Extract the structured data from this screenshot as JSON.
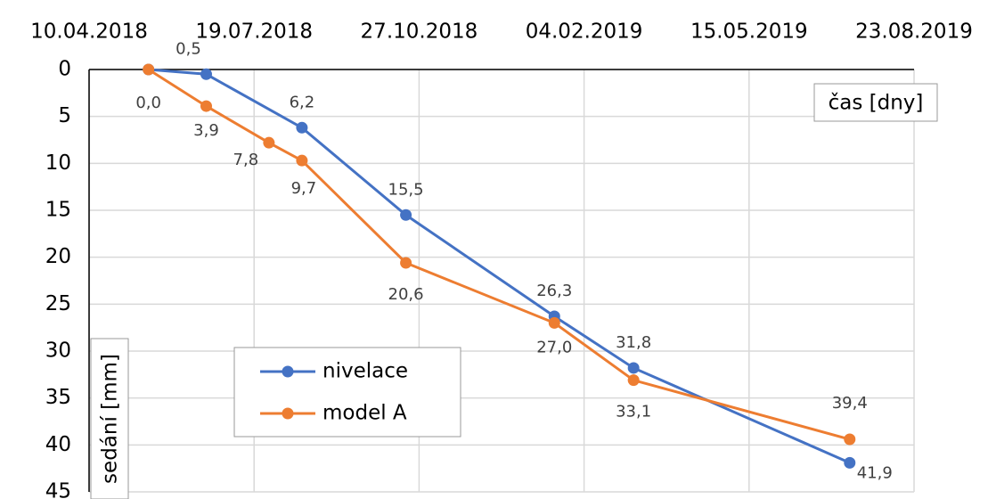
{
  "chart_data": {
    "type": "line",
    "x_label": "čas [dny]",
    "y_label": "sedání [mm]",
    "xlim": [
      "2018-04-10",
      "2019-08-23"
    ],
    "xticks": [
      {
        "value": "2018-04-10",
        "label": "10.04.2018"
      },
      {
        "value": "2018-07-19",
        "label": "19.07.2018"
      },
      {
        "value": "2018-10-27",
        "label": "27.10.2018"
      },
      {
        "value": "2019-02-04",
        "label": "04.02.2019"
      },
      {
        "value": "2019-05-15",
        "label": "15.05.2019"
      },
      {
        "value": "2019-08-23",
        "label": "23.08.2019"
      }
    ],
    "ylim": [
      0,
      45
    ],
    "y_inverted": true,
    "yticks": [
      0,
      5,
      10,
      15,
      20,
      25,
      30,
      35,
      40,
      45
    ],
    "grid": true,
    "legend": "lower left",
    "series": [
      {
        "name": "nivelace",
        "color": "#4472c4",
        "x": [
          "2018-05-16",
          "2018-06-20",
          "2018-08-17",
          "2018-10-19",
          "2019-01-17",
          "2019-03-06",
          "2019-07-15"
        ],
        "values": [
          0,
          0.5,
          6.2,
          15.5,
          26.3,
          31.8,
          41.9
        ],
        "value_labels": [
          null,
          "0,5",
          "6,2",
          "15,5",
          "26,3",
          "31,8",
          "41,9"
        ]
      },
      {
        "name": "model A",
        "color": "#ed7d31",
        "x": [
          "2018-05-16",
          "2018-06-20",
          "2018-07-28",
          "2018-08-17",
          "2018-10-19",
          "2019-01-17",
          "2019-03-06",
          "2019-07-15"
        ],
        "values": [
          0,
          3.9,
          7.8,
          9.7,
          20.6,
          27.0,
          33.1,
          39.4
        ],
        "value_labels": [
          "0,0",
          "3,9",
          "7,8",
          "9,7",
          "20,6",
          "27,0",
          "33,1",
          "39,4"
        ]
      }
    ]
  }
}
